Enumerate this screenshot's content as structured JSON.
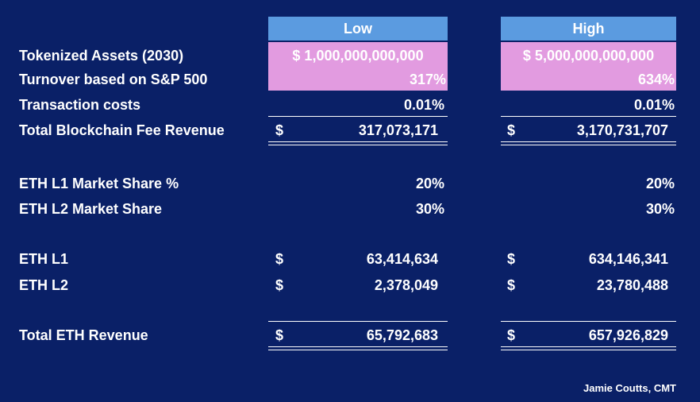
{
  "headers": {
    "low": "Low",
    "high": "High"
  },
  "rows": {
    "tokenized": {
      "label": "Tokenized Assets (2030)",
      "low": "$ 1,000,000,000,000",
      "high": "$ 5,000,000,000,000"
    },
    "turnover": {
      "label": "Turnover based on S&P 500",
      "low": "317%",
      "high": "634%"
    },
    "txcosts": {
      "label": "Transaction costs",
      "low": "0.01%",
      "high": "0.01%"
    },
    "fee_revenue": {
      "label": "Total Blockchain Fee Revenue",
      "low_symbol": "$",
      "low": "317,073,171",
      "high_symbol": "$",
      "high": "3,170,731,707"
    },
    "l1_share": {
      "label": "ETH L1 Market Share %",
      "low": "20%",
      "high": "20%"
    },
    "l2_share": {
      "label": "ETH L2 Market Share",
      "low": "30%",
      "high": "30%"
    },
    "eth_l1": {
      "label": "ETH L1",
      "low_symbol": "$",
      "low": "63,414,634",
      "high_symbol": "$",
      "high": "634,146,341"
    },
    "eth_l2": {
      "label": "ETH L2",
      "low_symbol": "$",
      "low": "2,378,049",
      "high_symbol": "$",
      "high": "23,780,488"
    },
    "total_eth": {
      "label": "Total ETH Revenue",
      "low_symbol": "$",
      "low": "65,792,683",
      "high_symbol": "$",
      "high": "657,926,829"
    }
  },
  "credit": "Jamie Coutts, CMT",
  "colors": {
    "background": "#0a2067",
    "header": "#5b9be0",
    "highlight": "#e29be0",
    "text": "#ffffff"
  }
}
